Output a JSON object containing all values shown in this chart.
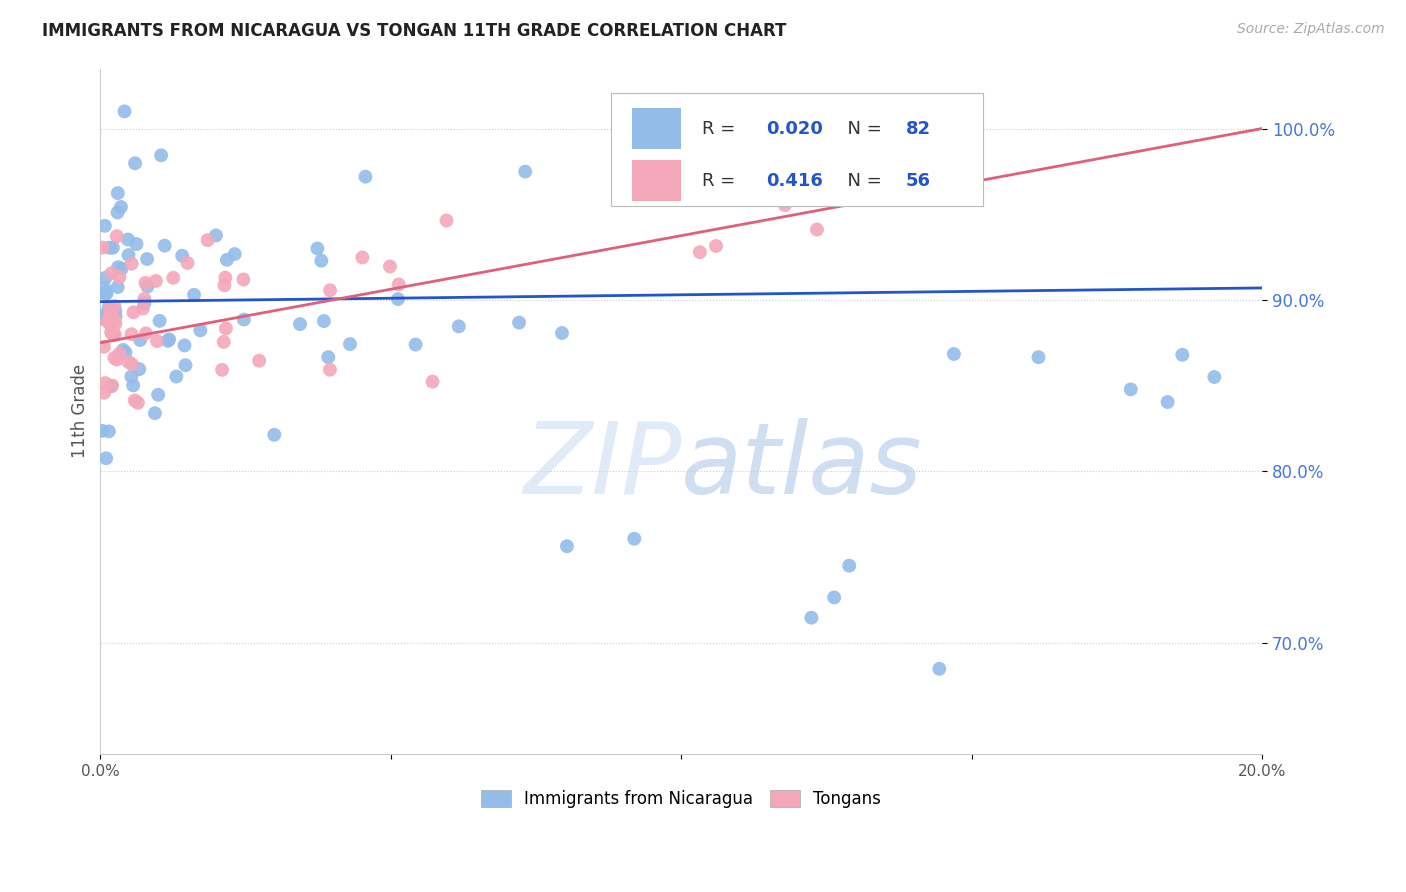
{
  "title": "IMMIGRANTS FROM NICARAGUA VS TONGAN 11TH GRADE CORRELATION CHART",
  "source": "Source: ZipAtlas.com",
  "ylabel": "11th Grade",
  "r_nicaragua": 0.02,
  "n_nicaragua": 82,
  "r_tongan": 0.416,
  "n_tongan": 56,
  "legend_label_nicaragua": "Immigrants from Nicaragua",
  "legend_label_tongan": "Tongans",
  "color_nicaragua": "#93bce9",
  "color_tongan": "#f4a7b9",
  "trendline_color_nicaragua": "#2255cc",
  "trendline_color_tongan": "#e0607a",
  "watermark_zip": "#c8d8f0",
  "watermark_atlas": "#b8cce8",
  "background_color": "#ffffff",
  "grid_color": "#cccccc",
  "ytick_color": "#4477dd",
  "xlim": [
    0.0,
    0.2
  ],
  "ylim": [
    0.635,
    1.035
  ],
  "yticks": [
    0.7,
    0.8,
    0.9,
    1.0
  ],
  "ytick_labels": [
    "70.0%",
    "80.0%",
    "90.0%",
    "100.0%"
  ]
}
